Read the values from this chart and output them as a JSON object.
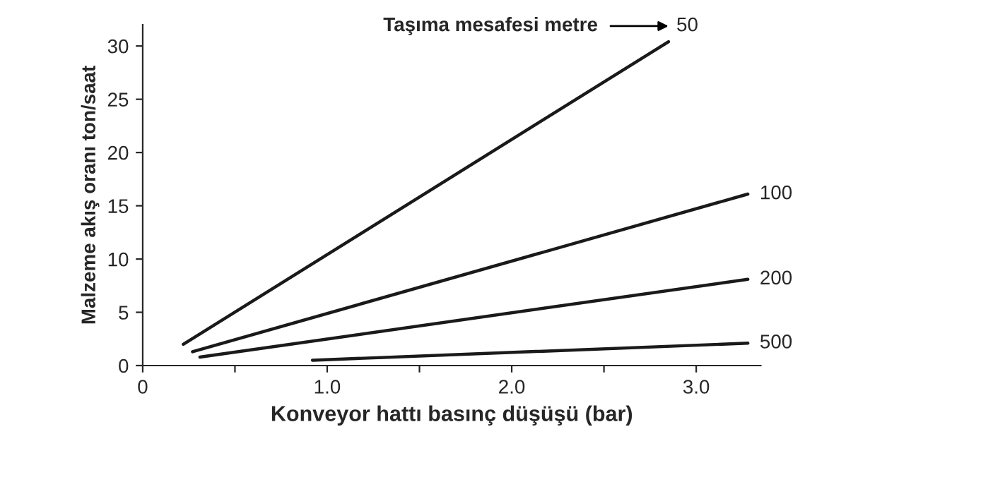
{
  "chart_data": {
    "type": "line",
    "xlabel": "Konveyor hattı basınç düşüşü (bar)",
    "ylabel": "Malzeme akış oranı ton/saat",
    "annotations": [
      "Taşıma mesafesi metre"
    ],
    "xlim": [
      0,
      3.35
    ],
    "ylim": [
      0,
      32
    ],
    "xticks": [
      {
        "value": 0,
        "label": "0"
      },
      {
        "value": 0.5,
        "label": null
      },
      {
        "value": 1.0,
        "label": "1.0"
      },
      {
        "value": 1.5,
        "label": null
      },
      {
        "value": 2.0,
        "label": "2.0"
      },
      {
        "value": 2.5,
        "label": null
      },
      {
        "value": 3.0,
        "label": "3.0"
      }
    ],
    "yticks": [
      0,
      5,
      10,
      15,
      20,
      25,
      30
    ],
    "grid": false,
    "legend": false,
    "marker": "none",
    "line_style": "solid",
    "series": [
      {
        "name": "50",
        "color": "#1a1a1a",
        "x": [
          0.22,
          2.85
        ],
        "values": [
          2.0,
          30.4
        ]
      },
      {
        "name": "100",
        "color": "#1a1a1a",
        "x": [
          0.27,
          3.28
        ],
        "values": [
          1.3,
          16.1
        ]
      },
      {
        "name": "200",
        "color": "#1a1a1a",
        "x": [
          0.31,
          3.28
        ],
        "values": [
          0.8,
          8.1
        ]
      },
      {
        "name": "500",
        "color": "#1a1a1a",
        "x": [
          0.92,
          3.28
        ],
        "values": [
          0.5,
          2.1
        ]
      }
    ]
  }
}
